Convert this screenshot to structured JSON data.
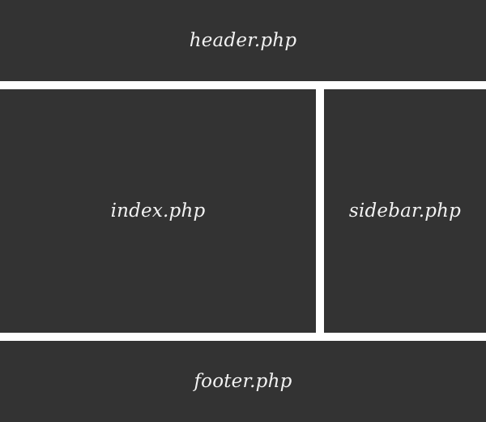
{
  "colors": {
    "block_background": "#333333",
    "text": "#f2f2f2",
    "gap": "#ffffff"
  },
  "layout": {
    "header": {
      "label": "header.php"
    },
    "main": {
      "label": "index.php"
    },
    "sidebar": {
      "label": "sidebar.php"
    },
    "footer": {
      "label": "footer.php"
    }
  }
}
